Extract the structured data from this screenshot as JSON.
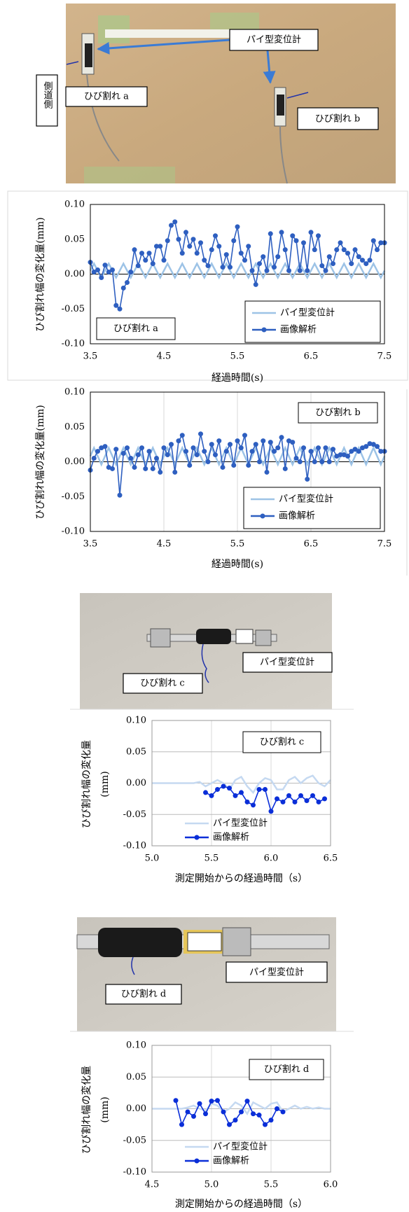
{
  "side_label": "側道側",
  "photos": [
    {
      "labels": [
        "パイ型変位計",
        "ひび割れ a",
        "ひび割れ b"
      ]
    },
    {
      "labels": [
        "パイ型変位計",
        "ひび割れ c"
      ]
    },
    {
      "labels": [
        "パイ型変位計",
        "ひび割れ d"
      ]
    }
  ],
  "chart_data": [
    {
      "type": "line",
      "annotation": "ひび割れ a",
      "xlabel": "経過時間(s)",
      "ylabel": "ひび割れ幅の変化量(mm)",
      "xlim": [
        3.5,
        7.5
      ],
      "xticks": [
        3.5,
        4.5,
        5.5,
        6.5,
        7.5
      ],
      "grid": false,
      "legend_box": true,
      "ylim": [
        -0.1,
        0.1
      ],
      "yticks": [
        {
          "value": 0.1,
          "label": "0.10"
        },
        {
          "value": 0.05,
          "label": "0.05"
        },
        {
          "value": 0,
          "label": "0.00"
        },
        {
          "value": -0.05,
          "label": "-0.05"
        },
        {
          "value": -0.1,
          "label": "-0.10"
        }
      ],
      "x": [
        3.5,
        3.55,
        3.6,
        3.65,
        3.7,
        3.75,
        3.8,
        3.85,
        3.9,
        3.95,
        4,
        4.05,
        4.1,
        4.15,
        4.2,
        4.25,
        4.3,
        4.35,
        4.4,
        4.45,
        4.5,
        4.55,
        4.6,
        4.65,
        4.7,
        4.75,
        4.8,
        4.85,
        4.9,
        4.95,
        5,
        5.05,
        5.1,
        5.15,
        5.2,
        5.25,
        5.3,
        5.35,
        5.4,
        5.45,
        5.5,
        5.55,
        5.6,
        5.65,
        5.7,
        5.75,
        5.8,
        5.85,
        5.9,
        5.95,
        6,
        6.05,
        6.1,
        6.15,
        6.2,
        6.25,
        6.3,
        6.35,
        6.4,
        6.45,
        6.5,
        6.55,
        6.6,
        6.65,
        6.7,
        6.75,
        6.8,
        6.85,
        6.9,
        6.95,
        7,
        7.05,
        7.1,
        7.15,
        7.2,
        7.25,
        7.3,
        7.35,
        7.4,
        7.45,
        7.5
      ],
      "series": [
        {
          "name": "パイ型変位計",
          "color": "#9dc3e6",
          "markers": false,
          "values": [
            0.005,
            0.015,
            0.005,
            -0.005,
            0.005,
            0.015,
            0.005,
            -0.005,
            0.005,
            0.015,
            0.005,
            -0.005,
            0.005,
            0.015,
            0.005,
            -0.005,
            0.005,
            0.015,
            0.005,
            -0.005,
            0.005,
            0.015,
            0.005,
            -0.005,
            0.005,
            0.015,
            0.005,
            -0.005,
            0.005,
            0.015,
            0.005,
            -0.005,
            0.005,
            0.015,
            0.005,
            -0.005,
            0.005,
            0.015,
            0.005,
            -0.005,
            0.005,
            0.015,
            0.005,
            -0.005,
            0.005,
            0.015,
            0.005,
            -0.005,
            0.005,
            0.015,
            0.005,
            -0.005,
            0.005,
            0.015,
            0.005,
            -0.005,
            0.005,
            0.015,
            0.005,
            -0.005,
            0.005,
            0.015,
            0.005,
            -0.005,
            0.005,
            0.015,
            0.005,
            -0.005,
            0.005,
            0.015,
            0.005,
            -0.005,
            0.005,
            0.015,
            0.005,
            -0.005,
            0.005,
            0.015,
            0.005,
            -0.005,
            0.005
          ]
        },
        {
          "name": "画像解析",
          "color": "#2e5fc0",
          "markers": true,
          "values": [
            0.017,
            0.003,
            0.006,
            -0.005,
            0.013,
            0.003,
            0.006,
            -0.045,
            -0.05,
            -0.02,
            -0.012,
            0.003,
            0.035,
            0.012,
            0.03,
            0.02,
            0.03,
            0.015,
            0.04,
            0.04,
            0.02,
            0.048,
            0.07,
            0.075,
            0.05,
            0.03,
            0.06,
            0.04,
            0.05,
            0.03,
            0.045,
            0.02,
            0.012,
            0.035,
            0.055,
            0.04,
            0.01,
            0.028,
            0.01,
            0.048,
            0.068,
            0.03,
            0.02,
            0.04,
            0.005,
            -0.015,
            0.015,
            0.025,
            0.005,
            0.058,
            0.01,
            0.025,
            0.06,
            0.035,
            0.005,
            0.055,
            0.048,
            0.005,
            0.045,
            0.005,
            0.06,
            0.035,
            0.055,
            0.012,
            0.005,
            0.025,
            0.015,
            0.035,
            0.045,
            0.035,
            0.03,
            0.015,
            0.035,
            0.025,
            0.02,
            0.015,
            0.02,
            0.048,
            0.035,
            0.045,
            0.045
          ]
        }
      ]
    },
    {
      "type": "line",
      "annotation": "ひび割れ b",
      "xlabel": "経過時間(s)",
      "ylabel": "ひび割れ幅の変化量(mm)",
      "xlim": [
        3.5,
        7.5
      ],
      "xticks": [
        3.5,
        4.5,
        5.5,
        6.5,
        7.5
      ],
      "grid": true,
      "legend_box": true,
      "ylim": [
        -0.1,
        0.1
      ],
      "yticks": [
        {
          "value": 0.1,
          "label": "0.10"
        },
        {
          "value": 0.05,
          "label": "0.05"
        },
        {
          "value": 0,
          "label": "0.00"
        },
        {
          "value": -0.05,
          "label": "-0.05"
        },
        {
          "value": -0.1,
          "label": "-0.10"
        }
      ],
      "x": [
        3.5,
        3.55,
        3.6,
        3.65,
        3.7,
        3.75,
        3.8,
        3.85,
        3.9,
        3.95,
        4,
        4.05,
        4.1,
        4.15,
        4.2,
        4.25,
        4.3,
        4.35,
        4.4,
        4.45,
        4.5,
        4.55,
        4.6,
        4.65,
        4.7,
        4.75,
        4.8,
        4.85,
        4.9,
        4.95,
        5,
        5.05,
        5.1,
        5.15,
        5.2,
        5.25,
        5.3,
        5.35,
        5.4,
        5.45,
        5.5,
        5.55,
        5.6,
        5.65,
        5.7,
        5.75,
        5.8,
        5.85,
        5.9,
        5.95,
        6,
        6.05,
        6.1,
        6.15,
        6.2,
        6.25,
        6.3,
        6.35,
        6.4,
        6.45,
        6.5,
        6.55,
        6.6,
        6.65,
        6.7,
        6.75,
        6.8,
        6.85,
        6.9,
        6.95,
        7,
        7.05,
        7.1,
        7.15,
        7.2,
        7.25,
        7.3,
        7.35,
        7.4,
        7.45,
        7.5
      ],
      "series": [
        {
          "name": "パイ型変位計",
          "color": "#9dc3e6",
          "markers": false,
          "values": [
            0.008,
            0.02,
            0.008,
            -0.004,
            0.008,
            0.02,
            0.008,
            -0.004,
            0.008,
            0.02,
            0.008,
            -0.004,
            0.008,
            0.02,
            0.008,
            -0.004,
            0.008,
            0.02,
            0.008,
            -0.004,
            0.008,
            0.02,
            0.008,
            -0.004,
            0.008,
            0.02,
            0.008,
            -0.004,
            0.008,
            0.02,
            0.008,
            -0.004,
            0.008,
            0.02,
            0.008,
            -0.004,
            0.008,
            0.02,
            0.008,
            -0.004,
            0.008,
            0.02,
            0.008,
            -0.004,
            0.008,
            0.02,
            0.008,
            -0.004,
            0.008,
            0.02,
            0.008,
            -0.004,
            0.008,
            0.02,
            0.008,
            -0.004,
            0.008,
            0.02,
            0.008,
            -0.004,
            0.008,
            0.02,
            0.008,
            -0.004,
            0.008,
            0.02,
            0.008,
            -0.004,
            0.008,
            0.02,
            0.008,
            -0.004,
            0.008,
            0.02,
            0.008,
            -0.004,
            0.008,
            0.02,
            0.008,
            -0.004,
            0.008
          ]
        },
        {
          "name": "画像解析",
          "color": "#2e5fc0",
          "markers": true,
          "values": [
            -0.012,
            0.005,
            0.015,
            0.02,
            0.022,
            -0.008,
            -0.01,
            0.018,
            -0.048,
            0.012,
            0.02,
            0.005,
            -0.008,
            0.01,
            0.02,
            -0.01,
            0.015,
            -0.01,
            0.005,
            -0.015,
            0.02,
            0.01,
            0.025,
            -0.015,
            0.03,
            0.038,
            0.015,
            -0.005,
            0.02,
            0.01,
            0.04,
            0.015,
            0,
            0.025,
            0.01,
            0.03,
            -0.008,
            0.015,
            0.025,
            -0.005,
            0.03,
            0.02,
            0.038,
            -0.005,
            0.015,
            0.025,
            0,
            0.03,
            -0.015,
            0.028,
            0.015,
            0.02,
            0.035,
            -0.01,
            0.03,
            0.028,
            0.005,
            0,
            0.02,
            -0.025,
            0.015,
            0,
            0.02,
            0,
            0.02,
            0,
            0.018,
            0.008,
            0.01,
            0.01,
            0.008,
            0.015,
            0.018,
            0.015,
            0.02,
            0.022,
            0.026,
            0.025,
            0.022,
            0.015,
            0.015
          ]
        }
      ]
    },
    {
      "type": "line",
      "annotation": "ひび割れ c",
      "xlabel": "測定開始からの経過時間（s）",
      "ylabel": [
        "ひび割れ幅の変化量",
        "(mm)"
      ],
      "xlim": [
        5,
        6.5
      ],
      "xticks": [
        {
          "value": 5,
          "label": "5.0"
        },
        5.5,
        {
          "value": 6,
          "label": "6.0"
        },
        6.5
      ],
      "grid": true,
      "legend_box": false,
      "ylim": [
        -0.1,
        0.1
      ],
      "yticks": [
        {
          "value": 0.1,
          "label": "0.10"
        },
        {
          "value": 0.05,
          "label": "0.05"
        },
        {
          "value": 0,
          "label": "0.00"
        },
        {
          "value": -0.05,
          "label": "-0.05"
        },
        {
          "value": -0.1,
          "label": "-0.10"
        }
      ],
      "x": [
        5,
        5.05,
        5.1,
        5.15,
        5.2,
        5.25,
        5.3,
        5.35,
        5.4,
        5.45,
        5.5,
        5.55,
        5.6,
        5.65,
        5.7,
        5.75,
        5.8,
        5.85,
        5.9,
        5.95,
        6,
        6.05,
        6.1,
        6.15,
        6.2,
        6.25,
        6.3,
        6.35,
        6.4,
        6.45,
        6.5
      ],
      "series": [
        {
          "name": "パイ型変位計",
          "color": "#c5d9f1",
          "markers": false,
          "values": [
            0,
            0,
            0,
            0,
            0,
            0,
            0,
            0,
            0.002,
            -0.005,
            0,
            0.005,
            0,
            -0.01,
            0.005,
            0.01,
            -0.005,
            -0.015,
            0,
            0.008,
            0.005,
            -0.01,
            -0.01,
            0.005,
            0.01,
            0,
            0.008,
            0.012,
            0,
            -0.005,
            0.005
          ]
        },
        {
          "name": "画像解析",
          "color": "#0a2ed8",
          "markers": true,
          "values": [
            null,
            null,
            null,
            null,
            null,
            null,
            null,
            null,
            null,
            -0.015,
            -0.02,
            -0.01,
            -0.005,
            -0.008,
            -0.02,
            -0.015,
            -0.03,
            -0.035,
            -0.01,
            -0.01,
            -0.045,
            -0.025,
            -0.03,
            -0.02,
            -0.03,
            -0.02,
            -0.028,
            -0.02,
            -0.03,
            -0.025,
            null
          ]
        }
      ]
    },
    {
      "type": "line",
      "annotation": "ひび割れ d",
      "xlabel": "測定開始からの経過時間（s）",
      "ylabel": [
        "ひび割れ幅の変化量",
        "(mm)"
      ],
      "xlim": [
        4.5,
        6
      ],
      "xticks": [
        4.5,
        {
          "value": 5,
          "label": "5.0"
        },
        5.5,
        {
          "value": 6,
          "label": "6.0"
        }
      ],
      "grid": true,
      "legend_box": false,
      "ylim": [
        -0.1,
        0.1
      ],
      "yticks": [
        {
          "value": 0.1,
          "label": "0.10"
        },
        {
          "value": 0.05,
          "label": "0.05"
        },
        {
          "value": 0,
          "label": "0.00"
        },
        {
          "value": -0.05,
          "label": "-0.05"
        },
        {
          "value": -0.1,
          "label": "-0.10"
        }
      ],
      "x": [
        4.5,
        4.55,
        4.6,
        4.65,
        4.7,
        4.75,
        4.8,
        4.85,
        4.9,
        4.95,
        5,
        5.05,
        5.1,
        5.15,
        5.2,
        5.25,
        5.3,
        5.35,
        5.4,
        5.45,
        5.5,
        5.55,
        5.6,
        5.65,
        5.7,
        5.75,
        5.8,
        5.85,
        5.9,
        5.95,
        6
      ],
      "series": [
        {
          "name": "パイ型変位計",
          "color": "#c5d9f1",
          "markers": false,
          "values": [
            0,
            0,
            0,
            0,
            0,
            0,
            0.002,
            0.005,
            0,
            -0.003,
            0.008,
            0.005,
            -0.005,
            0,
            0.01,
            0.005,
            -0.008,
            0.01,
            0.005,
            0,
            0.008,
            0.01,
            -0.005,
            0,
            0.005,
            0,
            0.003,
            0,
            0.002,
            0,
            0
          ]
        },
        {
          "name": "画像解析",
          "color": "#0a2ed8",
          "markers": true,
          "values": [
            null,
            null,
            null,
            null,
            0.013,
            -0.025,
            -0.005,
            -0.012,
            0.008,
            -0.008,
            0.012,
            0.013,
            -0.005,
            -0.025,
            -0.018,
            -0.005,
            0.012,
            -0.008,
            -0.01,
            -0.025,
            -0.018,
            0,
            -0.005,
            null,
            null,
            null,
            null,
            null,
            null,
            null,
            null
          ]
        }
      ]
    }
  ]
}
